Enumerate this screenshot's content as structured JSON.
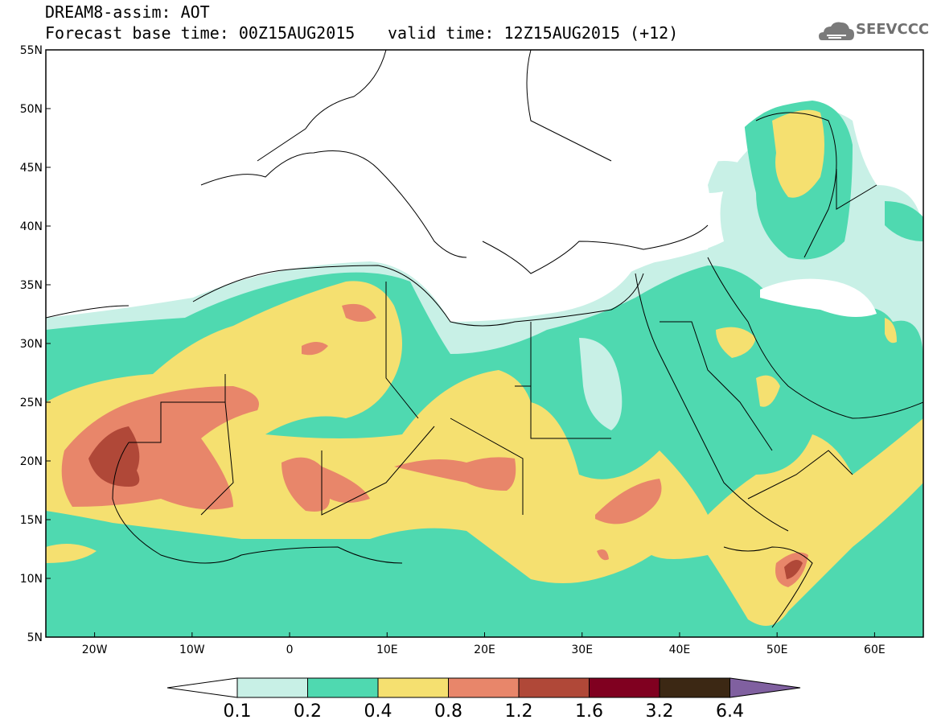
{
  "header": {
    "title_line1": "DREAM8-assim: AOT",
    "title_line2a": "Forecast base time: 00Z15AUG2015",
    "title_line2b": "valid time: 12Z15AUG2015 (+12)",
    "logo_text": "SEEVCCC",
    "logo_icon": "cloud-icon"
  },
  "map": {
    "projection": "lat-lon",
    "lon_range": [
      -25,
      65
    ],
    "lat_range": [
      5,
      55
    ],
    "x_ticks": [
      {
        "lon": -20,
        "label": "20W"
      },
      {
        "lon": -10,
        "label": "10W"
      },
      {
        "lon": 0,
        "label": "0"
      },
      {
        "lon": 10,
        "label": "10E"
      },
      {
        "lon": 20,
        "label": "20E"
      },
      {
        "lon": 30,
        "label": "30E"
      },
      {
        "lon": 40,
        "label": "40E"
      },
      {
        "lon": 50,
        "label": "50E"
      },
      {
        "lon": 60,
        "label": "60E"
      }
    ],
    "y_ticks": [
      {
        "lat": 55,
        "label": "55N"
      },
      {
        "lat": 50,
        "label": "50N"
      },
      {
        "lat": 45,
        "label": "45N"
      },
      {
        "lat": 40,
        "label": "40N"
      },
      {
        "lat": 35,
        "label": "35N"
      },
      {
        "lat": 30,
        "label": "30N"
      },
      {
        "lat": 25,
        "label": "25N"
      },
      {
        "lat": 20,
        "label": "20N"
      },
      {
        "lat": 15,
        "label": "15N"
      },
      {
        "lat": 10,
        "label": "10N"
      },
      {
        "lat": 5,
        "label": "5N"
      }
    ]
  },
  "colorbar": {
    "labels": [
      "0.1",
      "0.2",
      "0.4",
      "0.8",
      "1.2",
      "1.6",
      "3.2",
      "6.4"
    ],
    "colors": [
      "#ffffff",
      "#c8f0e6",
      "#4fd9b0",
      "#f5e070",
      "#e8866a",
      "#b04838",
      "#800020",
      "#3c2814",
      "#8060a0"
    ]
  }
}
